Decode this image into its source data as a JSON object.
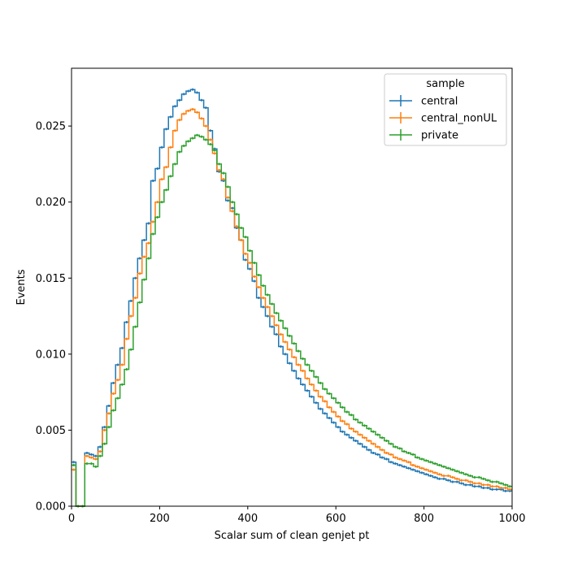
{
  "chart_data": {
    "type": "line",
    "drawstyle": "step-histogram",
    "title": "",
    "xlabel": "Scalar sum of clean genjet pt",
    "ylabel": "Events",
    "xlim": [
      0,
      1000
    ],
    "ylim": [
      0,
      0.0288
    ],
    "x_ticks": [
      0,
      200,
      400,
      600,
      800,
      1000
    ],
    "x_tick_labels": [
      "0",
      "200",
      "400",
      "600",
      "800",
      "1000"
    ],
    "y_ticks": [
      0,
      0.005,
      0.01,
      0.015,
      0.02,
      0.025
    ],
    "y_tick_labels": [
      "0.000",
      "0.005",
      "0.010",
      "0.015",
      "0.020",
      "0.025"
    ],
    "grid": false,
    "bin_width": 10,
    "x": [
      5,
      15,
      25,
      35,
      45,
      55,
      65,
      75,
      85,
      95,
      105,
      115,
      125,
      135,
      145,
      155,
      165,
      175,
      185,
      195,
      205,
      215,
      225,
      235,
      245,
      255,
      265,
      275,
      285,
      295,
      305,
      315,
      325,
      335,
      345,
      355,
      365,
      375,
      385,
      395,
      405,
      415,
      425,
      435,
      445,
      455,
      465,
      475,
      485,
      495,
      505,
      515,
      525,
      535,
      545,
      555,
      565,
      575,
      585,
      595,
      605,
      615,
      625,
      635,
      645,
      655,
      665,
      675,
      685,
      695,
      705,
      715,
      725,
      735,
      745,
      755,
      765,
      775,
      785,
      795,
      805,
      815,
      825,
      835,
      845,
      855,
      865,
      875,
      885,
      895,
      905,
      915,
      925,
      935,
      945,
      955,
      965,
      975,
      985,
      995
    ],
    "legend": {
      "title": "sample",
      "position": "upper right"
    },
    "series": [
      {
        "name": "central",
        "color": "#1f77b4",
        "values": [
          0.0029,
          0.0,
          0.0,
          0.0035,
          0.0034,
          0.0033,
          0.0039,
          0.0052,
          0.0066,
          0.0081,
          0.0093,
          0.0104,
          0.0121,
          0.0135,
          0.015,
          0.0163,
          0.0175,
          0.0186,
          0.0214,
          0.0222,
          0.0236,
          0.0248,
          0.0256,
          0.0263,
          0.0267,
          0.0271,
          0.0273,
          0.0274,
          0.0272,
          0.0267,
          0.0262,
          0.0247,
          0.0235,
          0.022,
          0.0214,
          0.0201,
          0.0196,
          0.0183,
          0.0175,
          0.0162,
          0.0156,
          0.0148,
          0.0137,
          0.0131,
          0.0125,
          0.0118,
          0.0113,
          0.0105,
          0.01,
          0.0094,
          0.0089,
          0.0084,
          0.008,
          0.0076,
          0.0072,
          0.0068,
          0.0064,
          0.0061,
          0.0058,
          0.0055,
          0.0052,
          0.0049,
          0.0047,
          0.0045,
          0.0043,
          0.0041,
          0.0039,
          0.0037,
          0.0035,
          0.0034,
          0.0032,
          0.0031,
          0.0029,
          0.0028,
          0.0027,
          0.0026,
          0.0025,
          0.0024,
          0.0023,
          0.0022,
          0.0021,
          0.002,
          0.0019,
          0.0018,
          0.0018,
          0.0017,
          0.0016,
          0.0016,
          0.0015,
          0.0014,
          0.0014,
          0.0013,
          0.0013,
          0.0012,
          0.0012,
          0.0011,
          0.0011,
          0.0011,
          0.001,
          0.001
        ]
      },
      {
        "name": "central_nonUL",
        "color": "#ff7f0e",
        "values": [
          0.0024,
          0.0,
          0.0,
          0.0033,
          0.0032,
          0.0031,
          0.0036,
          0.005,
          0.0061,
          0.0074,
          0.0083,
          0.0093,
          0.011,
          0.0125,
          0.0137,
          0.0153,
          0.0164,
          0.0173,
          0.0187,
          0.02,
          0.0215,
          0.0223,
          0.0236,
          0.0247,
          0.0254,
          0.0258,
          0.026,
          0.0261,
          0.0259,
          0.0255,
          0.025,
          0.0241,
          0.0232,
          0.0221,
          0.0215,
          0.0203,
          0.0194,
          0.0184,
          0.0175,
          0.0166,
          0.016,
          0.0151,
          0.0144,
          0.0137,
          0.0131,
          0.0125,
          0.0119,
          0.0113,
          0.0108,
          0.0103,
          0.0098,
          0.0093,
          0.0089,
          0.0084,
          0.008,
          0.0076,
          0.0072,
          0.0069,
          0.0065,
          0.0062,
          0.0059,
          0.0056,
          0.0054,
          0.0051,
          0.0049,
          0.0047,
          0.0045,
          0.0043,
          0.0041,
          0.0039,
          0.0037,
          0.0035,
          0.0034,
          0.0032,
          0.0031,
          0.003,
          0.0029,
          0.0027,
          0.0026,
          0.0025,
          0.0024,
          0.0023,
          0.0022,
          0.0021,
          0.002,
          0.002,
          0.0019,
          0.0018,
          0.0017,
          0.0017,
          0.0016,
          0.0015,
          0.0015,
          0.0014,
          0.0014,
          0.0013,
          0.0013,
          0.0012,
          0.0012,
          0.0011
        ]
      },
      {
        "name": "private",
        "color": "#2ca02c",
        "values": [
          0.0027,
          0.0,
          0.0,
          0.0028,
          0.0028,
          0.0026,
          0.0033,
          0.0041,
          0.0052,
          0.0063,
          0.0071,
          0.008,
          0.009,
          0.0103,
          0.0118,
          0.0134,
          0.0149,
          0.0163,
          0.0179,
          0.019,
          0.02,
          0.0208,
          0.0217,
          0.0225,
          0.0233,
          0.0237,
          0.024,
          0.0242,
          0.0244,
          0.0243,
          0.0241,
          0.0238,
          0.0234,
          0.0225,
          0.0219,
          0.021,
          0.02,
          0.0192,
          0.0183,
          0.0177,
          0.0168,
          0.016,
          0.0152,
          0.0145,
          0.0139,
          0.0133,
          0.0127,
          0.0122,
          0.0117,
          0.0112,
          0.0107,
          0.0102,
          0.0097,
          0.0093,
          0.0089,
          0.0085,
          0.0081,
          0.0077,
          0.0074,
          0.0071,
          0.0068,
          0.0065,
          0.0062,
          0.006,
          0.0057,
          0.0055,
          0.0053,
          0.0051,
          0.0049,
          0.0047,
          0.0045,
          0.0043,
          0.0041,
          0.0039,
          0.0038,
          0.0036,
          0.0035,
          0.0034,
          0.0032,
          0.0031,
          0.003,
          0.0029,
          0.0028,
          0.0027,
          0.0026,
          0.0025,
          0.0024,
          0.0023,
          0.0022,
          0.0021,
          0.002,
          0.0019,
          0.0019,
          0.0018,
          0.0017,
          0.0016,
          0.0016,
          0.0015,
          0.0014,
          0.0013
        ]
      }
    ]
  }
}
